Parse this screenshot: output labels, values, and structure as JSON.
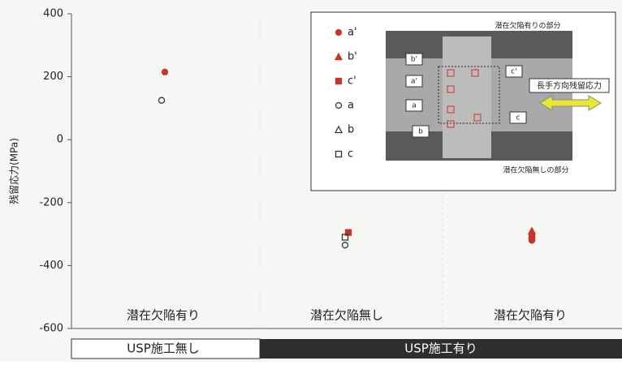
{
  "chart_data": {
    "type": "scatter",
    "y_label": "残留応力(MPa)",
    "categories": [
      "潜在欠陥有り",
      "潜在欠陥無し",
      "潜在欠陥有り"
    ],
    "groups": [
      "USP施工無し",
      "USP施工有り"
    ],
    "series": [
      {
        "name": "a'",
        "color": "#c8342c",
        "marker": "circle",
        "filled": true,
        "values": [
          215,
          null,
          -320
        ]
      },
      {
        "name": "b'",
        "color": "#c8342c",
        "marker": "triangle",
        "filled": true,
        "values": [
          null,
          null,
          -290
        ]
      },
      {
        "name": "c'",
        "color": "#c8342c",
        "marker": "square",
        "filled": true,
        "values": [
          null,
          -295,
          -310
        ]
      },
      {
        "name": "a",
        "color": "#333333",
        "marker": "circle",
        "filled": false,
        "values": [
          125,
          -335,
          null
        ]
      },
      {
        "name": "b",
        "color": "#333333",
        "marker": "triangle",
        "filled": false,
        "values": [
          null,
          null,
          null
        ]
      },
      {
        "name": "c",
        "color": "#333333",
        "marker": "square",
        "filled": false,
        "values": [
          null,
          -310,
          null
        ]
      }
    ],
    "annotations": [
      "潜在欠陥有りの部分",
      "潜在欠陥無しの部分",
      "長手方向残留応力"
    ],
    "ylim": [
      -600,
      400
    ],
    "yticks": [
      -600,
      -400,
      -200,
      0,
      200,
      400
    ]
  }
}
